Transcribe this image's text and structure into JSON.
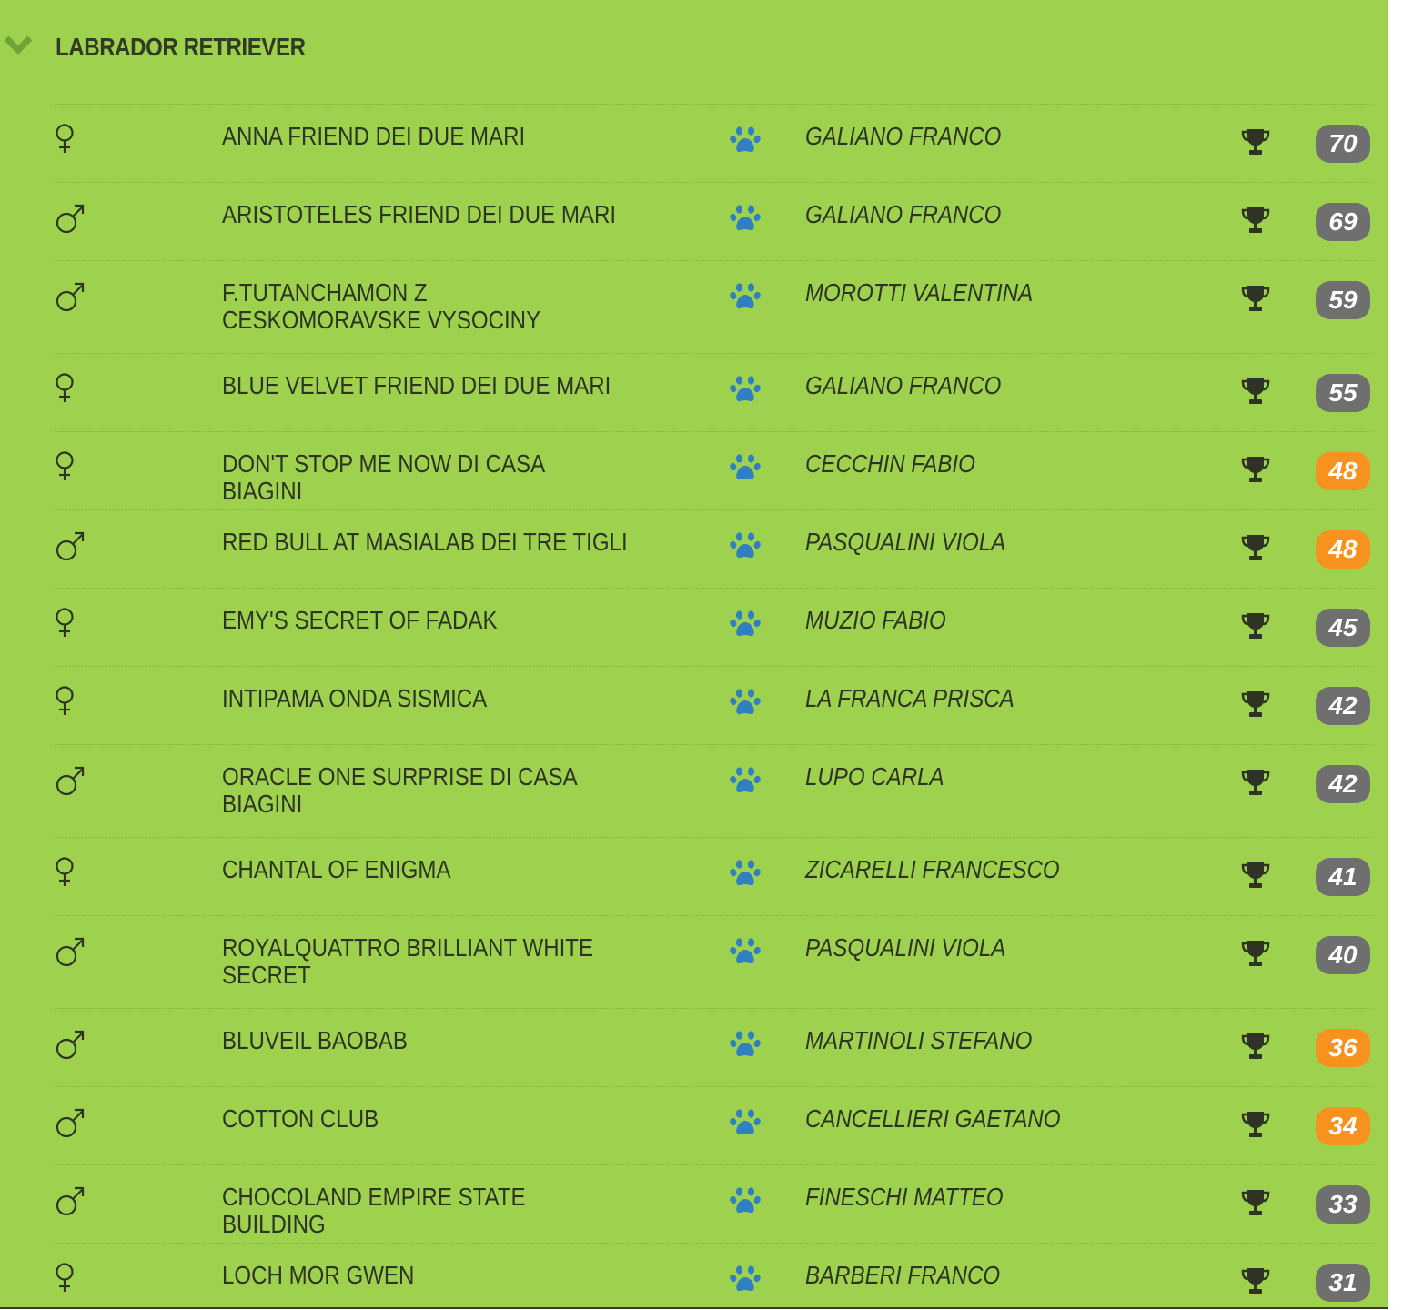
{
  "breed": {
    "title": "LABRADOR RETRIEVER",
    "toggle_icon": "chevron-down-icon"
  },
  "colors": {
    "panel_background": "#9dd14e",
    "badge_gray": "#6f6f6f",
    "badge_orange": "#f7921e",
    "paw_blue": "#2f7fc1",
    "text_dark": "#2e3324"
  },
  "icons": {
    "female": "venus-icon",
    "male": "mars-icon",
    "owner": "paw-icon",
    "score": "trophy-icon"
  },
  "dogs": [
    {
      "sex": "female",
      "name": "ANNA FRIEND DEI DUE MARI",
      "owner": "GALIANO FRANCO",
      "score": "70",
      "badge_color": "gray"
    },
    {
      "sex": "male",
      "name": "ARISTOTELES FRIEND DEI DUE MARI",
      "owner": "GALIANO FRANCO",
      "score": "69",
      "badge_color": "gray"
    },
    {
      "sex": "male",
      "name": "F.TUTANCHAMON Z CESKOMORAVSKE VYSOCINY",
      "owner": "MOROTTI VALENTINA",
      "score": "59",
      "badge_color": "gray"
    },
    {
      "sex": "female",
      "name": "BLUE VELVET FRIEND DEI DUE MARI",
      "owner": "GALIANO FRANCO",
      "score": "55",
      "badge_color": "gray"
    },
    {
      "sex": "female",
      "name": "DON'T STOP ME NOW DI CASA BIAGINI",
      "owner": "CECCHIN FABIO",
      "score": "48",
      "badge_color": "orange"
    },
    {
      "sex": "male",
      "name": "RED BULL AT MASIALAB DEI TRE TIGLI",
      "owner": "PASQUALINI VIOLA",
      "score": "48",
      "badge_color": "orange"
    },
    {
      "sex": "female",
      "name": "EMY'S SECRET OF FADAK",
      "owner": "MUZIO FABIO",
      "score": "45",
      "badge_color": "gray"
    },
    {
      "sex": "female",
      "name": "INTIPAMA ONDA SISMICA",
      "owner": "LA FRANCA PRISCA",
      "score": "42",
      "badge_color": "gray"
    },
    {
      "sex": "male",
      "name": "ORACLE ONE SURPRISE DI CASA BIAGINI",
      "owner": "LUPO CARLA",
      "score": "42",
      "badge_color": "gray"
    },
    {
      "sex": "female",
      "name": "CHANTAL OF ENIGMA",
      "owner": "ZICARELLI FRANCESCO",
      "score": "41",
      "badge_color": "gray"
    },
    {
      "sex": "male",
      "name": "ROYALQUATTRO BRILLIANT WHITE SECRET",
      "owner": "PASQUALINI VIOLA",
      "score": "40",
      "badge_color": "gray"
    },
    {
      "sex": "male",
      "name": "BLUVEIL BAOBAB",
      "owner": "MARTINOLI STEFANO",
      "score": "36",
      "badge_color": "orange"
    },
    {
      "sex": "male",
      "name": "COTTON CLUB",
      "owner": "CANCELLIERI GAETANO",
      "score": "34",
      "badge_color": "orange"
    },
    {
      "sex": "male",
      "name": "CHOCOLAND EMPIRE STATE BUILDING",
      "owner": "FINESCHI MATTEO",
      "score": "33",
      "badge_color": "gray"
    },
    {
      "sex": "female",
      "name": "LOCH MOR GWEN",
      "owner": "BARBERI FRANCO",
      "score": "31",
      "badge_color": "gray"
    }
  ]
}
